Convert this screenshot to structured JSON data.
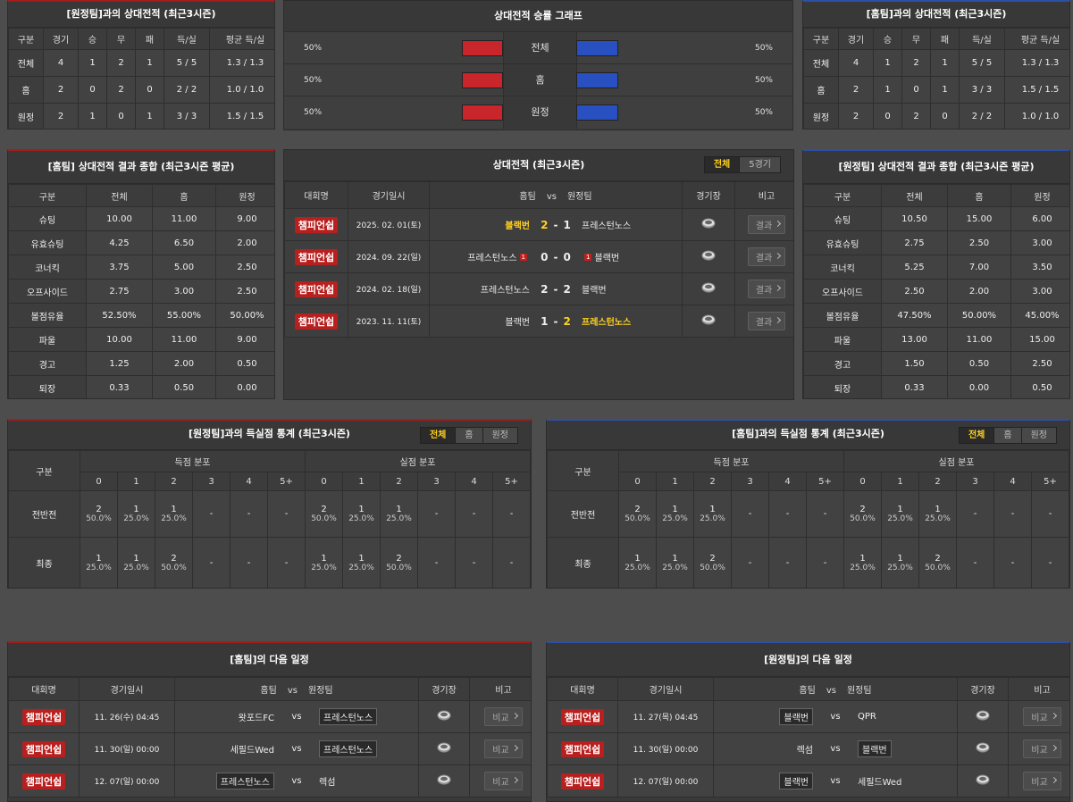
{
  "h2h_away": {
    "title": "[원정팀]과의 상대전적 (최근3시즌)",
    "headers": [
      "구분",
      "경기",
      "승",
      "무",
      "패",
      "득/실",
      "평균 득/실"
    ],
    "rows": [
      [
        "전체",
        "4",
        "1",
        "2",
        "1",
        "5 / 5",
        "1.3 / 1.3"
      ],
      [
        "홈",
        "2",
        "0",
        "2",
        "0",
        "2 / 2",
        "1.0 / 1.0"
      ],
      [
        "원정",
        "2",
        "1",
        "0",
        "1",
        "3 / 3",
        "1.5 / 1.5"
      ]
    ]
  },
  "winrate": {
    "title": "상대전적 승률 그래프",
    "rows": [
      {
        "label": "전체",
        "home": 50,
        "home_label": "50%",
        "away": 50,
        "away_label": "50%"
      },
      {
        "label": "홈",
        "home": 50,
        "home_label": "50%",
        "away": 50,
        "away_label": "50%"
      },
      {
        "label": "원정",
        "home": 50,
        "home_label": "50%",
        "away": 50,
        "away_label": "50%"
      }
    ]
  },
  "h2h_home": {
    "title": "[홈팀]과의 상대전적 (최근3시즌)",
    "headers": [
      "구분",
      "경기",
      "승",
      "무",
      "패",
      "득/실",
      "평균 득/실"
    ],
    "rows": [
      [
        "전체",
        "4",
        "1",
        "2",
        "1",
        "5 / 5",
        "1.3 / 1.3"
      ],
      [
        "홈",
        "2",
        "1",
        "0",
        "1",
        "3 / 3",
        "1.5 / 1.5"
      ],
      [
        "원정",
        "2",
        "0",
        "2",
        "0",
        "2 / 2",
        "1.0 / 1.0"
      ]
    ]
  },
  "summary_home": {
    "title": "[홈팀] 상대전적 결과 종합 (최근3시즌 평균)",
    "headers": [
      "구분",
      "전체",
      "홈",
      "원정"
    ],
    "rows": [
      [
        "슈팅",
        "10.00",
        "11.00",
        "9.00"
      ],
      [
        "유효슈팅",
        "4.25",
        "6.50",
        "2.00"
      ],
      [
        "코너킥",
        "3.75",
        "5.00",
        "2.50"
      ],
      [
        "오프사이드",
        "2.75",
        "3.00",
        "2.50"
      ],
      [
        "볼점유율",
        "52.50%",
        "55.00%",
        "50.00%"
      ],
      [
        "파울",
        "10.00",
        "11.00",
        "9.00"
      ],
      [
        "경고",
        "1.25",
        "2.00",
        "0.50"
      ],
      [
        "퇴장",
        "0.33",
        "0.50",
        "0.00"
      ]
    ]
  },
  "recent": {
    "title": "상대전적 (최근3시즌)",
    "tabs": [
      "전체",
      "5경기"
    ],
    "headers": [
      "대회명",
      "경기일시",
      "홈팀",
      "vs",
      "원정팀",
      "경기장",
      "비고"
    ],
    "sep": "-",
    "button": "결과",
    "matches": [
      {
        "league": "챔피언쉽",
        "date": "2025. 02. 01(토)",
        "home": "블랙번",
        "score_home": "2",
        "score_away": "1",
        "away": "프레스턴노스",
        "winner": "home"
      },
      {
        "league": "챔피언쉽",
        "date": "2024. 09. 22(일)",
        "home": "프레스턴노스",
        "home_red": "1",
        "score_home": "0",
        "score_away": "0",
        "away": "블랙번",
        "away_red": "1"
      },
      {
        "league": "챔피언쉽",
        "date": "2024. 02. 18(일)",
        "home": "프레스턴노스",
        "score_home": "2",
        "score_away": "2",
        "away": "블랙번"
      },
      {
        "league": "챔피언쉽",
        "date": "2023. 11. 11(토)",
        "home": "블랙번",
        "score_home": "1",
        "score_away": "2",
        "away": "프레스턴노스",
        "winner": "away"
      }
    ]
  },
  "summary_away": {
    "title": "[원정팀] 상대전적 결과 종합 (최근3시즌 평균)",
    "headers": [
      "구분",
      "전체",
      "홈",
      "원정"
    ],
    "rows": [
      [
        "슈팅",
        "10.50",
        "15.00",
        "6.00"
      ],
      [
        "유효슈팅",
        "2.75",
        "2.50",
        "3.00"
      ],
      [
        "코너킥",
        "5.25",
        "7.00",
        "3.50"
      ],
      [
        "오프사이드",
        "2.50",
        "2.00",
        "3.00"
      ],
      [
        "볼점유율",
        "47.50%",
        "50.00%",
        "45.00%"
      ],
      [
        "파울",
        "13.00",
        "11.00",
        "15.00"
      ],
      [
        "경고",
        "1.50",
        "0.50",
        "2.50"
      ],
      [
        "퇴장",
        "0.33",
        "0.00",
        "0.50"
      ]
    ]
  },
  "goals_away": {
    "title": "[원정팀]과의 득실점 통계 (최근3시즌)",
    "tabs": [
      "전체",
      "홈",
      "원정"
    ],
    "headers": {
      "label": "구분",
      "scored": "득점 분포",
      "conceded": "실점 분포",
      "goals": [
        "0",
        "1",
        "2",
        "3",
        "4",
        "5+"
      ]
    },
    "rows": [
      {
        "label": "전반전",
        "scored": [
          [
            "2",
            "50.0%"
          ],
          [
            "1",
            "25.0%"
          ],
          [
            "1",
            "25.0%"
          ],
          "-",
          "-",
          "-"
        ],
        "conceded": [
          [
            "2",
            "50.0%"
          ],
          [
            "1",
            "25.0%"
          ],
          [
            "1",
            "25.0%"
          ],
          "-",
          "-",
          "-"
        ]
      },
      {
        "label": "최종",
        "scored": [
          [
            "1",
            "25.0%"
          ],
          [
            "1",
            "25.0%"
          ],
          [
            "2",
            "50.0%"
          ],
          "-",
          "-",
          "-"
        ],
        "conceded": [
          [
            "1",
            "25.0%"
          ],
          [
            "1",
            "25.0%"
          ],
          [
            "2",
            "50.0%"
          ],
          "-",
          "-",
          "-"
        ]
      }
    ]
  },
  "goals_home": {
    "title": "[홈팀]과의 득실점 통계 (최근3시즌)",
    "tabs": [
      "전체",
      "홈",
      "원정"
    ],
    "headers": {
      "label": "구분",
      "scored": "득점 분포",
      "conceded": "실점 분포",
      "goals": [
        "0",
        "1",
        "2",
        "3",
        "4",
        "5+"
      ]
    },
    "rows": [
      {
        "label": "전반전",
        "scored": [
          [
            "2",
            "50.0%"
          ],
          [
            "1",
            "25.0%"
          ],
          [
            "1",
            "25.0%"
          ],
          "-",
          "-",
          "-"
        ],
        "conceded": [
          [
            "2",
            "50.0%"
          ],
          [
            "1",
            "25.0%"
          ],
          [
            "1",
            "25.0%"
          ],
          "-",
          "-",
          "-"
        ]
      },
      {
        "label": "최종",
        "scored": [
          [
            "1",
            "25.0%"
          ],
          [
            "1",
            "25.0%"
          ],
          [
            "2",
            "50.0%"
          ],
          "-",
          "-",
          "-"
        ],
        "conceded": [
          [
            "1",
            "25.0%"
          ],
          [
            "1",
            "25.0%"
          ],
          [
            "2",
            "50.0%"
          ],
          "-",
          "-",
          "-"
        ]
      }
    ]
  },
  "schedule_home": {
    "title": "[홈팀]의 다음 일정",
    "headers": [
      "대회명",
      "경기일시",
      "홈팀",
      "vs",
      "원정팀",
      "경기장",
      "비고"
    ],
    "vs": "vs",
    "button": "비교",
    "matches": [
      {
        "league": "챔피언쉽",
        "date": "11. 26(수) 04:45",
        "home": "왓포드FC",
        "away": "프레스턴노스",
        "focus": "away"
      },
      {
        "league": "챔피언쉽",
        "date": "11. 30(일) 00:00",
        "home": "세필드Wed",
        "away": "프레스턴노스",
        "focus": "away"
      },
      {
        "league": "챔피언쉽",
        "date": "12. 07(일) 00:00",
        "home": "프레스턴노스",
        "away": "렉섬",
        "focus": "home"
      }
    ]
  },
  "schedule_away": {
    "title": "[원정팀]의 다음 일정",
    "headers": [
      "대회명",
      "경기일시",
      "홈팀",
      "vs",
      "원정팀",
      "경기장",
      "비고"
    ],
    "vs": "vs",
    "button": "비교",
    "matches": [
      {
        "league": "챔피언쉽",
        "date": "11. 27(목) 04:45",
        "home": "블랙번",
        "away": "QPR",
        "focus": "home"
      },
      {
        "league": "챔피언쉽",
        "date": "11. 30(일) 00:00",
        "home": "렉섬",
        "away": "블랙번",
        "focus": "away"
      },
      {
        "league": "챔피언쉽",
        "date": "12. 07(일) 00:00",
        "home": "블랙번",
        "away": "세필드Wed",
        "focus": "home"
      }
    ]
  }
}
